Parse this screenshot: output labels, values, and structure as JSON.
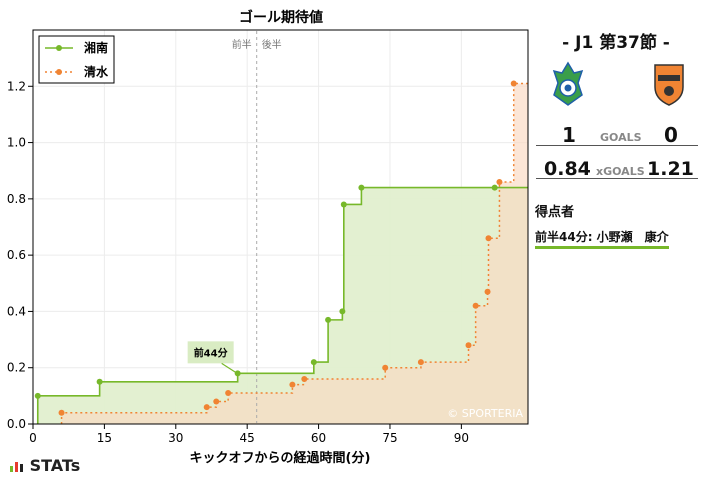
{
  "chart_data": {
    "type": "line",
    "title": "ゴール期待値",
    "xlabel": "キックオフからの経過時間(分)",
    "ylabel": "",
    "xlim": [
      0,
      104
    ],
    "ylim": [
      0,
      1.4
    ],
    "xticks": [
      0,
      15,
      30,
      45,
      60,
      75,
      90
    ],
    "yticks": [
      0.0,
      0.2,
      0.4,
      0.6,
      0.8,
      1.0,
      1.2
    ],
    "half_marker": {
      "minute": 47,
      "first_label": "前半",
      "second_label": "後半"
    },
    "legend_position": "top-left",
    "watermark": "© SPORTERIA",
    "annotation": {
      "label": "前44分",
      "minute": 43,
      "value": 0.18
    },
    "series": [
      {
        "name": "湘南",
        "color": "#77b82a",
        "fill": "#e1efcf",
        "style": "solid",
        "points": [
          [
            1,
            0.1
          ],
          [
            14,
            0.15
          ],
          [
            43,
            0.18
          ],
          [
            59,
            0.22
          ],
          [
            62,
            0.37
          ],
          [
            65,
            0.4
          ],
          [
            65.3,
            0.78
          ],
          [
            69,
            0.84
          ],
          [
            97,
            0.84
          ],
          [
            104,
            0.84
          ]
        ]
      },
      {
        "name": "清水",
        "color": "#f08433",
        "fill": "#fbd9c2",
        "style": "dotted",
        "points": [
          [
            6,
            0.04
          ],
          [
            36.5,
            0.06
          ],
          [
            38.5,
            0.08
          ],
          [
            41,
            0.11
          ],
          [
            54.5,
            0.14
          ],
          [
            57,
            0.16
          ],
          [
            74,
            0.2
          ],
          [
            81.5,
            0.22
          ],
          [
            91.5,
            0.28
          ],
          [
            93,
            0.42
          ],
          [
            95.5,
            0.47
          ],
          [
            95.7,
            0.66
          ],
          [
            98,
            0.86
          ],
          [
            101,
            1.21
          ],
          [
            104,
            1.21
          ]
        ]
      }
    ]
  },
  "panel": {
    "match_title": "- J1 第37節 -",
    "home_goals": "1",
    "away_goals": "0",
    "goals_label": "GOALS",
    "home_xg": "0.84",
    "away_xg": "1.21",
    "xg_label": "xGOALS",
    "scorers_heading": "得点者",
    "scorer_line": "前半44分: 小野瀬　康介",
    "home_color": "#3a9e4a",
    "away_color": "#f08433"
  },
  "branding": {
    "logo_text": "STATs"
  }
}
